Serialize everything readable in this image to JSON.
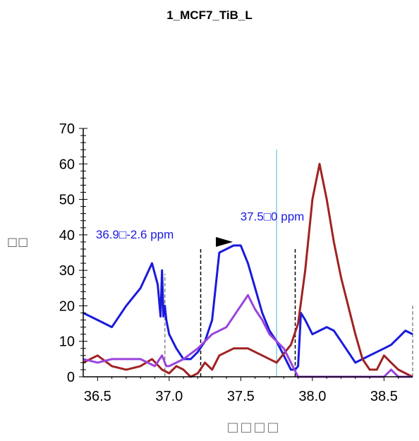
{
  "chart_data": {
    "type": "line",
    "title": "1_MCF7_TiB_L",
    "xlabel": "□□□□",
    "ylabel": "□□",
    "xlim": [
      36.4,
      38.7
    ],
    "ylim": [
      0,
      70
    ],
    "xticks": [
      "36.5",
      "37.0",
      "37.5",
      "38.0",
      "38.5"
    ],
    "yticks": [
      "0",
      "10",
      "20",
      "30",
      "40",
      "50",
      "60",
      "70"
    ],
    "grid": false,
    "series": [
      {
        "color": "#1a1adc",
        "x": [
          36.4,
          36.5,
          36.6,
          36.7,
          36.8,
          36.88,
          36.92,
          36.94,
          36.95,
          36.96,
          36.97,
          36.98,
          37.0,
          37.05,
          37.1,
          37.15,
          37.2,
          37.25,
          37.3,
          37.35,
          37.4,
          37.45,
          37.5,
          37.55,
          37.6,
          37.65,
          37.7,
          37.75,
          37.8,
          37.85,
          37.88,
          37.9,
          37.92,
          37.95,
          38.0,
          38.05,
          38.1,
          38.15,
          38.2,
          38.3,
          38.35,
          38.4,
          38.45,
          38.5,
          38.55,
          38.6,
          38.65,
          38.7
        ],
        "y": [
          18,
          16,
          14,
          20,
          25,
          32,
          26,
          17,
          30,
          17,
          20,
          16,
          12,
          8,
          5,
          5,
          7,
          10,
          16,
          35,
          36,
          37,
          37,
          32,
          25,
          18,
          13,
          10,
          6,
          2,
          2,
          3,
          18,
          16,
          12,
          13,
          14,
          13,
          10,
          4,
          5,
          6,
          7,
          8,
          9,
          11,
          13,
          12
        ]
      },
      {
        "color": "#a02222",
        "x": [
          36.4,
          36.5,
          36.6,
          36.7,
          36.8,
          36.88,
          36.95,
          37.0,
          37.05,
          37.1,
          37.15,
          37.2,
          37.25,
          37.3,
          37.35,
          37.45,
          37.55,
          37.65,
          37.75,
          37.85,
          37.9,
          37.95,
          38.0,
          38.05,
          38.1,
          38.15,
          38.2,
          38.25,
          38.3,
          38.35,
          38.4,
          38.45,
          38.5,
          38.55,
          38.6,
          38.65,
          38.7
        ],
        "y": [
          4,
          6,
          3,
          2,
          3,
          5,
          2,
          1,
          3,
          2,
          0,
          1,
          4,
          2,
          6,
          8,
          8,
          6,
          4,
          9,
          15,
          30,
          50,
          60,
          50,
          38,
          28,
          20,
          12,
          5,
          2,
          2,
          6,
          4,
          2,
          1,
          0
        ]
      },
      {
        "color": "#9a44dd",
        "x": [
          36.4,
          36.5,
          36.6,
          36.7,
          36.8,
          36.9,
          36.95,
          36.98,
          37.0,
          37.1,
          37.2,
          37.3,
          37.4,
          37.5,
          37.55,
          37.6,
          37.65,
          37.7,
          37.75,
          37.8,
          37.85,
          37.9,
          38.0,
          38.1,
          38.2,
          38.3,
          38.4,
          38.5,
          38.55,
          38.6,
          38.7
        ],
        "y": [
          5,
          4,
          5,
          5,
          5,
          3,
          6,
          3,
          3,
          5,
          8,
          12,
          14,
          20,
          23,
          19,
          16,
          12,
          10,
          8,
          4,
          0,
          0,
          0,
          0,
          0,
          0,
          0,
          2,
          0,
          0
        ]
      }
    ],
    "vlines": [
      {
        "x": 37.75,
        "color": "#87cfdc",
        "style": "solid",
        "ytop": 64
      },
      {
        "x": 36.97,
        "color": "#888888",
        "style": "dashed",
        "ytop": 29
      },
      {
        "x": 37.22,
        "color": "#000000",
        "style": "dashed",
        "ytop": 36
      },
      {
        "x": 37.88,
        "color": "#000000",
        "style": "dashed",
        "ytop": 36
      },
      {
        "x": 38.7,
        "color": "#888888",
        "style": "dashed",
        "ytop": 20
      }
    ],
    "annotations": [
      {
        "text": "37.5□0 ppm",
        "x": 37.72,
        "y": 44,
        "color": "#1a1adc"
      },
      {
        "text": "36.9□-2.6 ppm",
        "x": 36.76,
        "y": 39,
        "color": "#1a1adc"
      }
    ],
    "marker": {
      "type": "arrow-right",
      "x": 37.4,
      "y": 38
    }
  }
}
